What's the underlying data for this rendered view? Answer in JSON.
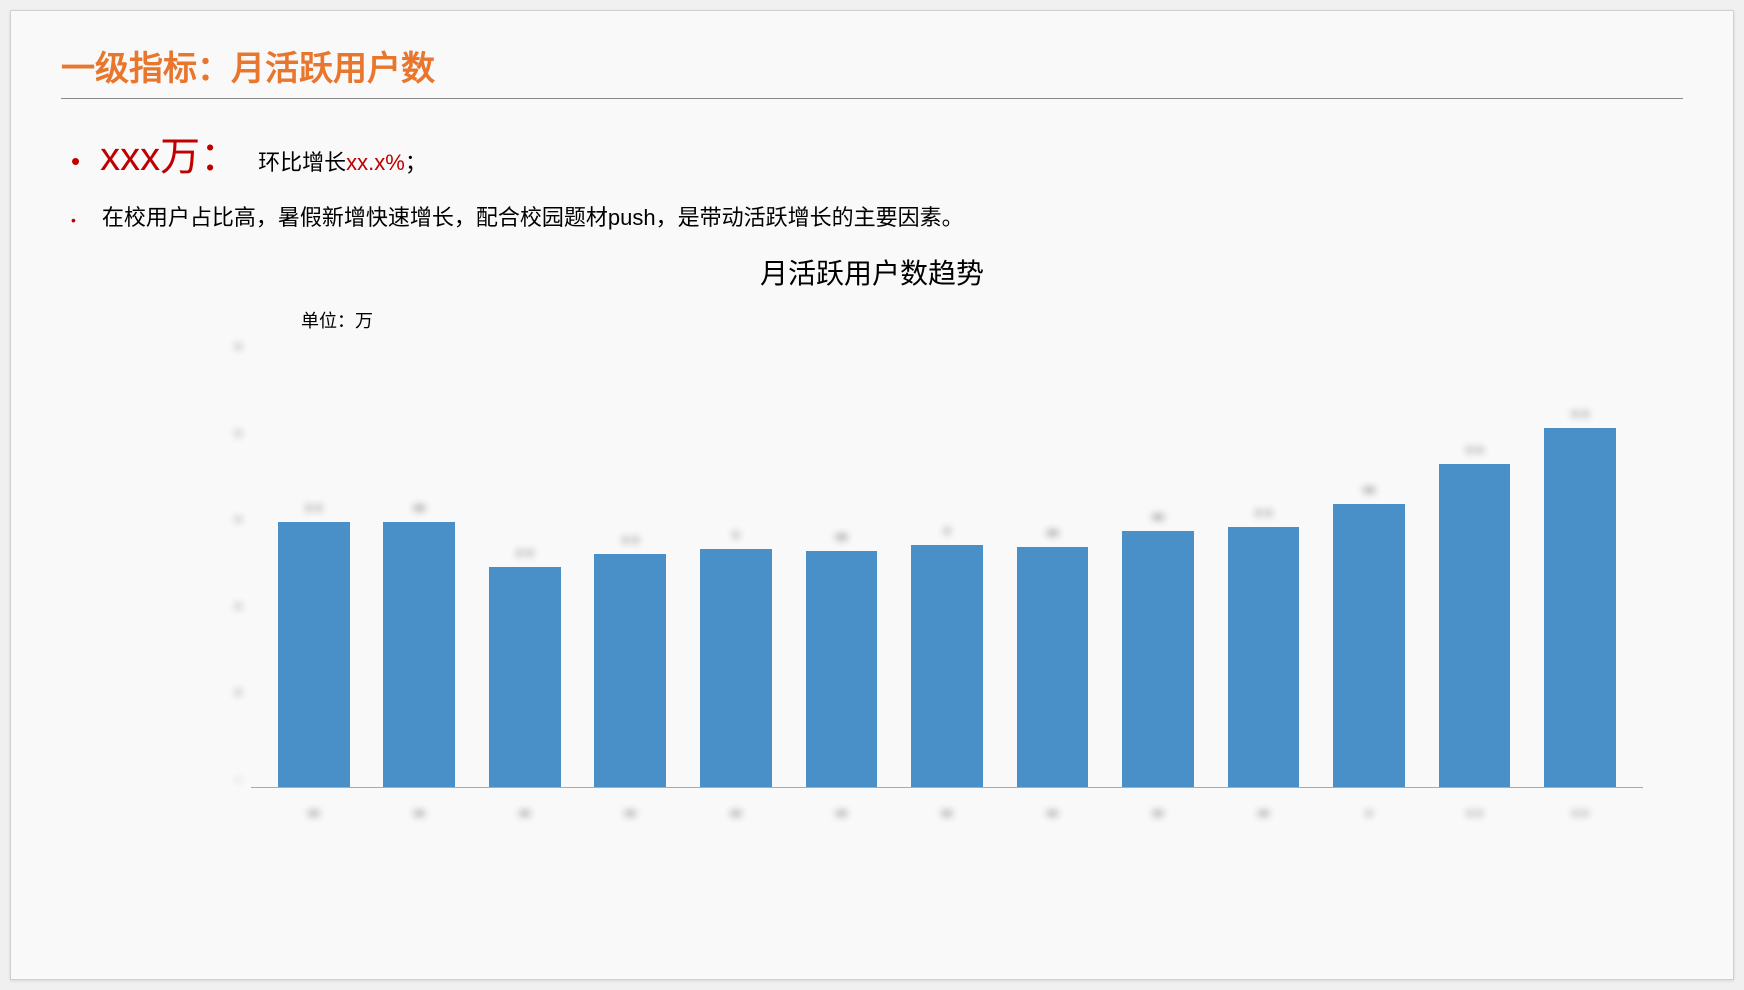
{
  "slide": {
    "title": "一级指标：月活跃用户数",
    "title_color": "#e8762d",
    "bullet1": {
      "dot_color": "#c00000",
      "big_value": "xxx万：",
      "big_value_color": "#c00000",
      "mom_prefix": "环比增长",
      "mom_value": "xx.x%",
      "mom_value_color": "#c00000",
      "mom_suffix": "；"
    },
    "bullet2": {
      "dot_color": "#c00000",
      "text": "在校用户占比高，暑假新增快速增长，配合校园题材push，是带动活跃增长的主要因素。"
    }
  },
  "chart": {
    "type": "bar",
    "title": "月活跃用户数趋势",
    "unit_label": "单位：万",
    "bar_color": "#4a90c8",
    "background_color": "#f9f9f9",
    "yaxis": {
      "ticks_count": 6,
      "tick_heights_pct": [
        100,
        80,
        60,
        40,
        20,
        0
      ],
      "tick_labels_redacted": [
        "▪",
        "▪",
        "▪",
        "▪",
        "▪",
        "-"
      ]
    },
    "bars": [
      {
        "x_redacted": "▪▪",
        "value_label_redacted": "▪ ▪",
        "height_pct": 59
      },
      {
        "x_redacted": "▪▪",
        "value_label_redacted": "▪▪",
        "height_pct": 59
      },
      {
        "x_redacted": "▪▪",
        "value_label_redacted": "▪ ▪",
        "height_pct": 49
      },
      {
        "x_redacted": "▪▪",
        "value_label_redacted": "▪ ▪",
        "height_pct": 52
      },
      {
        "x_redacted": "▪▪",
        "value_label_redacted": "▪",
        "height_pct": 53
      },
      {
        "x_redacted": "▪▪",
        "value_label_redacted": "▪▪",
        "height_pct": 52.5
      },
      {
        "x_redacted": "▪▪",
        "value_label_redacted": "▪",
        "height_pct": 54
      },
      {
        "x_redacted": "▪▪",
        "value_label_redacted": "▪▪",
        "height_pct": 53.5
      },
      {
        "x_redacted": "▪▪",
        "value_label_redacted": "▪▪",
        "height_pct": 57
      },
      {
        "x_redacted": "▪▪",
        "value_label_redacted": "▪ ▪",
        "height_pct": 58
      },
      {
        "x_redacted": "▪",
        "value_label_redacted": "▪▪",
        "height_pct": 63
      },
      {
        "x_redacted": "▪ ▪",
        "value_label_redacted": "▪ ▪",
        "height_pct": 72
      },
      {
        "x_redacted": "▪ ▪",
        "value_label_redacted": "▪ ▪",
        "height_pct": 80
      }
    ],
    "bar_width_ratio": 0.68,
    "title_fontsize": 28,
    "label_fontsize": 16
  }
}
